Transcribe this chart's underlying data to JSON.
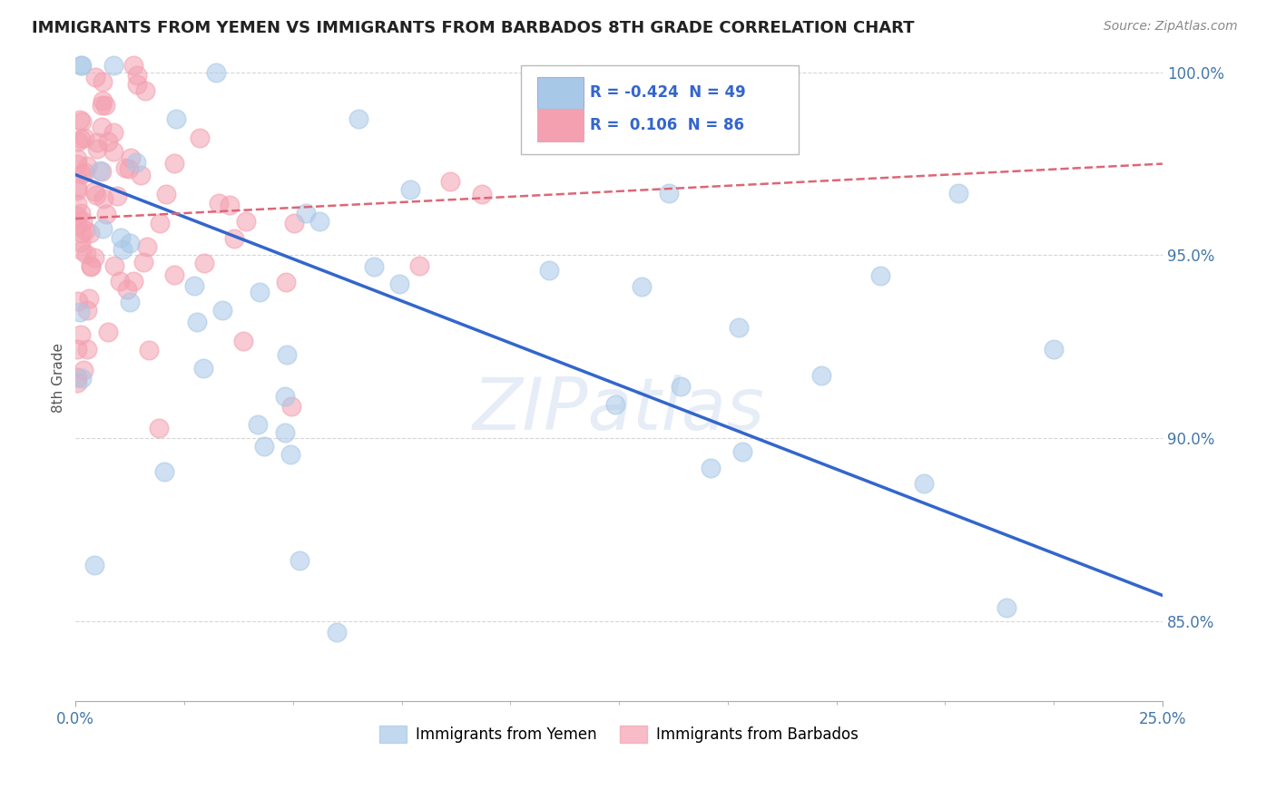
{
  "title": "IMMIGRANTS FROM YEMEN VS IMMIGRANTS FROM BARBADOS 8TH GRADE CORRELATION CHART",
  "source": "Source: ZipAtlas.com",
  "ylabel": "8th Grade",
  "xlim": [
    0.0,
    0.25
  ],
  "ylim": [
    0.828,
    1.005
  ],
  "xtick_positions": [
    0.0,
    0.25
  ],
  "xtick_labels": [
    "0.0%",
    "25.0%"
  ],
  "ytick_positions": [
    0.85,
    0.9,
    0.95,
    1.0
  ],
  "ytick_labels": [
    "85.0%",
    "90.0%",
    "95.0%",
    "100.0%"
  ],
  "legend_series": [
    "Immigrants from Yemen",
    "Immigrants from Barbados"
  ],
  "watermark": "ZIPatlas",
  "background_color": "#ffffff",
  "grid_color": "#cccccc",
  "yemen_color": "#a8c8e8",
  "barbados_color": "#f4a0b0",
  "yemen_fill": "#a8c8e8",
  "barbados_fill": "#f4a0b0",
  "yemen_trendline_color": "#3366cc",
  "barbados_trendline_color": "#dd6677",
  "yemen_R": -0.424,
  "yemen_N": 49,
  "barbados_R": 0.106,
  "barbados_N": 86,
  "yemen_trend_x": [
    0.0,
    0.25
  ],
  "yemen_trend_y": [
    0.972,
    0.857
  ],
  "barbados_trend_x": [
    0.0,
    0.25
  ],
  "barbados_trend_y": [
    0.96,
    0.975
  ]
}
